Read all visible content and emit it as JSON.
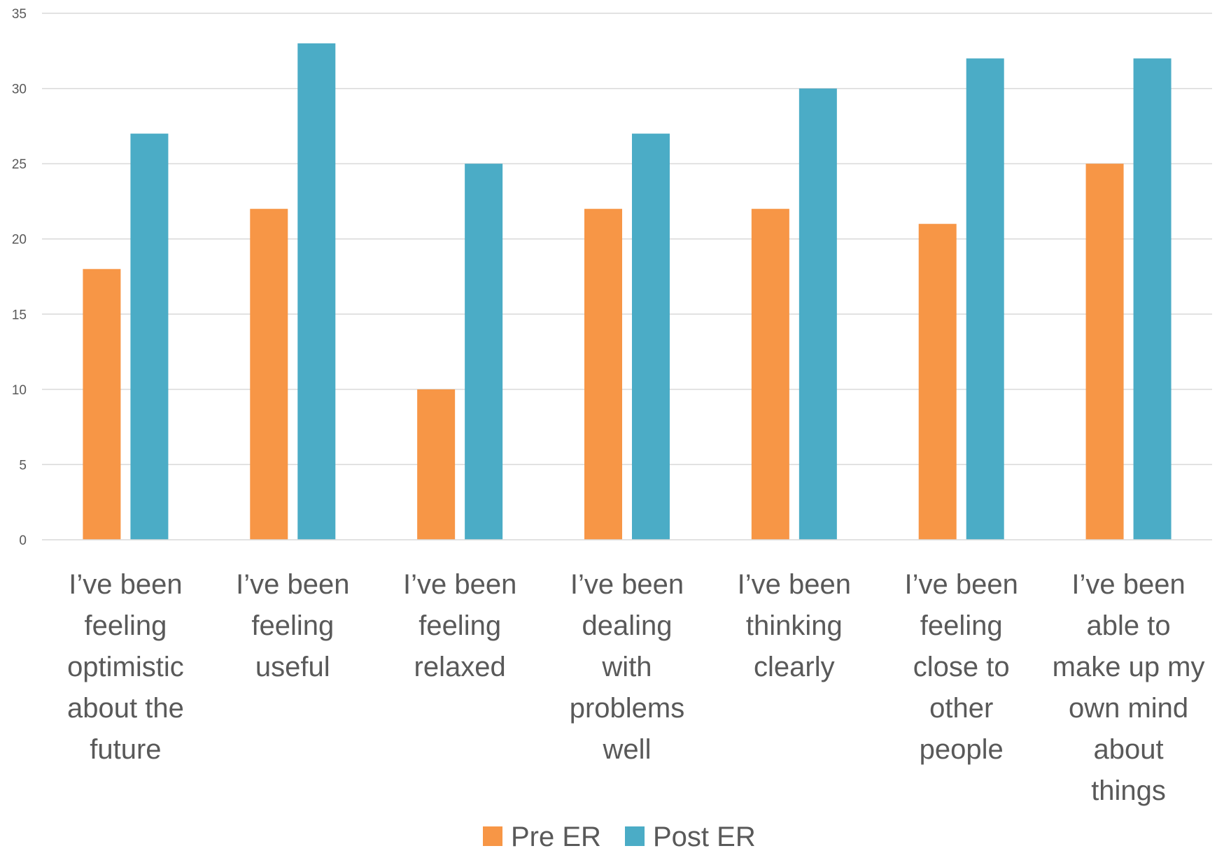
{
  "chart_data": {
    "type": "bar",
    "title": "",
    "xlabel": "",
    "ylabel": "",
    "ylim": [
      0,
      35
    ],
    "yticks": [
      0,
      5,
      10,
      15,
      20,
      25,
      30,
      35
    ],
    "grid": true,
    "legend_position": "bottom",
    "categories": [
      [
        "I’ve been",
        "feeling",
        "optimistic",
        "about the",
        "future"
      ],
      [
        "I’ve been",
        "feeling",
        "useful"
      ],
      [
        "I’ve been",
        "feeling",
        "relaxed"
      ],
      [
        "I’ve been",
        "dealing",
        "with",
        "problems",
        "well"
      ],
      [
        "I’ve been",
        "thinking",
        "clearly"
      ],
      [
        "I’ve been",
        "feeling",
        "close to",
        "other",
        "people"
      ],
      [
        "I’ve been",
        "able to",
        "make up my",
        "own mind",
        "about",
        "things"
      ]
    ],
    "series": [
      {
        "name": "Pre ER",
        "color": "#F79646",
        "values": [
          18,
          22,
          10,
          22,
          22,
          21,
          25
        ]
      },
      {
        "name": "Post ER",
        "color": "#4BACC6",
        "values": [
          27,
          33,
          25,
          27,
          30,
          32,
          32
        ]
      }
    ]
  }
}
